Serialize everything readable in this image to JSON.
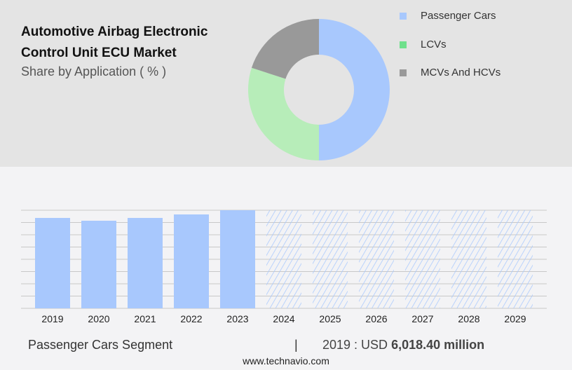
{
  "header": {
    "title": "Automotive Airbag Electronic Control Unit ECU Market",
    "subtitle": "Share by Application ( % )"
  },
  "colors": {
    "passenger": "#a8c8fd",
    "lcv": "#b7edb9",
    "mhcv": "#999999",
    "lcv_legend": "#6fe08c",
    "grid": "#c8c8c8"
  },
  "chart_data": [
    {
      "type": "pie",
      "donut": true,
      "legend_position": "right",
      "categories": [
        "Passenger Cars",
        "LCVs",
        "MCVs And HCVs"
      ],
      "values": [
        50,
        30,
        20
      ]
    },
    {
      "type": "bar",
      "categories": [
        "2019",
        "2020",
        "2021",
        "2022",
        "2023",
        "2024",
        "2025",
        "2026",
        "2027",
        "2028",
        "2029"
      ],
      "values": [
        6018.4,
        5832,
        6018,
        6251,
        6531,
        null,
        null,
        null,
        null,
        null,
        null
      ],
      "forecast": [
        false,
        false,
        false,
        false,
        false,
        true,
        true,
        true,
        true,
        true,
        true
      ],
      "ylim": [
        0,
        6531
      ],
      "grid": true,
      "xlabel": "",
      "ylabel": ""
    }
  ],
  "footer": {
    "segment": "Passenger Cars Segment",
    "separator": "|",
    "year_label": "2019 : USD",
    "value": "6,018.40 million",
    "url": "www.technavio.com"
  }
}
